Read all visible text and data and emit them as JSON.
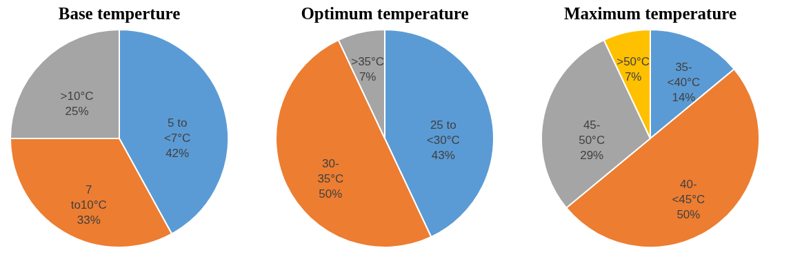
{
  "chart_data": [
    {
      "type": "pie",
      "title": "Base temperture",
      "categories": [
        "5 to <7°C",
        "7 to10°C",
        ">10°C"
      ],
      "values": [
        42,
        33,
        25
      ],
      "value_labels": [
        "42%",
        "33%",
        "25%"
      ],
      "colors": [
        "#5b9bd5",
        "#ed7d31",
        "#a5a5a5"
      ]
    },
    {
      "type": "pie",
      "title": "Optimum temperature",
      "categories": [
        "25 to <30°C",
        "30-35°C",
        ">35°C"
      ],
      "values": [
        43,
        50,
        7
      ],
      "value_labels": [
        "43%",
        "50%",
        "7%"
      ],
      "colors": [
        "#5b9bd5",
        "#ed7d31",
        "#a5a5a5"
      ]
    },
    {
      "type": "pie",
      "title": "Maximum temperature",
      "categories": [
        "35-<40°C",
        "40-<45°C",
        "45-50°C",
        ">50°C"
      ],
      "values": [
        14,
        50,
        29,
        7
      ],
      "value_labels": [
        "14%",
        "50%",
        "29%",
        "7%"
      ],
      "colors": [
        "#5b9bd5",
        "#ed7d31",
        "#a5a5a5",
        "#ffc000"
      ]
    }
  ]
}
